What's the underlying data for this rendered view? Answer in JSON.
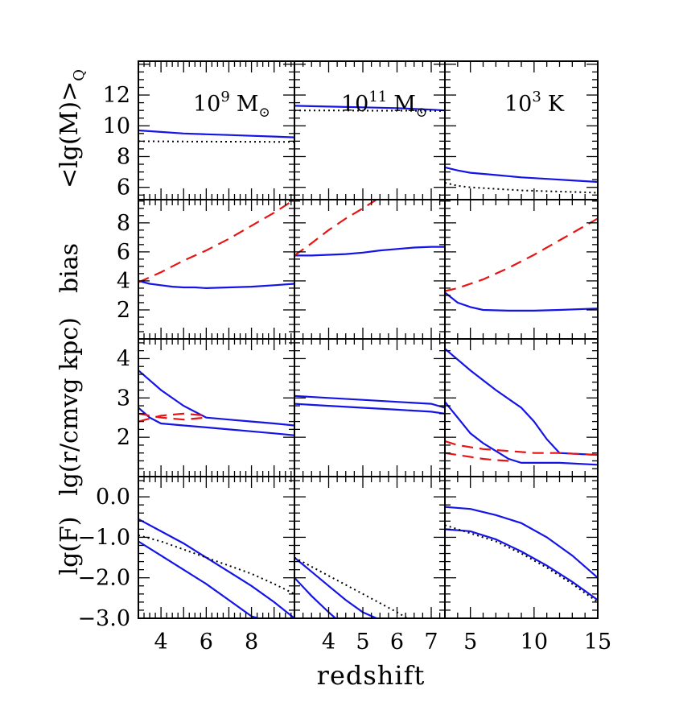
{
  "chart_data": {
    "type": "line",
    "xlabel": "redshift",
    "columns": [
      {
        "title_base": "10",
        "title_exp": "9",
        "title_unit": "M",
        "title_symbol": "⊙",
        "xlim": [
          3.0,
          9.9
        ],
        "xticks": [
          4,
          6,
          8
        ]
      },
      {
        "title_base": "10",
        "title_exp": "11",
        "title_unit": "M",
        "title_symbol": "⊙",
        "xlim": [
          3.0,
          7.4
        ],
        "xticks": [
          4,
          5,
          6,
          7
        ]
      },
      {
        "title_base": "10",
        "title_exp": "3",
        "title_unit": "K",
        "title_symbol": "",
        "xlim": [
          3.0,
          15.0
        ],
        "xticks": [
          5,
          10,
          15
        ]
      }
    ],
    "rows": [
      {
        "ylabel": "<lg(M)>",
        "ylabel_sub": "Q",
        "ylim": [
          5.2,
          14.2
        ],
        "yticks": [
          6,
          8,
          10,
          12
        ],
        "ytick_labels": [
          "6",
          "8",
          "10",
          "12"
        ],
        "major_step": 2,
        "minor_step": 0.5
      },
      {
        "ylabel": "bias",
        "ylabel_sub": "",
        "ylim": [
          0.0,
          9.6
        ],
        "yticks": [
          2,
          4,
          6,
          8
        ],
        "ytick_labels": [
          "2",
          "4",
          "6",
          "8"
        ],
        "major_step": 2,
        "minor_step": 0.5
      },
      {
        "ylabel": "lg(r/cmvg kpc)",
        "ylabel_sub": "",
        "ylim": [
          1.0,
          4.5
        ],
        "yticks": [
          2,
          3,
          4
        ],
        "ytick_labels": [
          "2",
          "3",
          "4"
        ],
        "major_step": 1,
        "minor_step": 0.2
      },
      {
        "ylabel": "lg(F)",
        "ylabel_sub": "",
        "ylim": [
          -3.0,
          0.5
        ],
        "yticks": [
          0,
          -1,
          -2,
          -3
        ],
        "ytick_labels": [
          "0.0",
          "−1.0",
          "−2.0",
          "−3.0"
        ],
        "major_step": 1,
        "minor_step": 0.2
      }
    ],
    "colors": {
      "solid": "#1414e6",
      "dashed": "#e61414",
      "dotted": "#000000"
    },
    "panels": [
      {
        "row": 0,
        "col": 0,
        "series": [
          {
            "style": "solid",
            "x": [
              3.0,
              4,
              5,
              6,
              7,
              8,
              9,
              9.9
            ],
            "y": [
              9.7,
              9.6,
              9.5,
              9.45,
              9.4,
              9.35,
              9.3,
              9.25
            ]
          },
          {
            "style": "dotted",
            "x": [
              3.0,
              5,
              7,
              9.9
            ],
            "y": [
              9.0,
              8.98,
              8.97,
              8.95
            ]
          }
        ]
      },
      {
        "row": 0,
        "col": 1,
        "series": [
          {
            "style": "solid",
            "x": [
              3.0,
              4,
              5,
              6,
              7,
              7.4
            ],
            "y": [
              11.3,
              11.25,
              11.2,
              11.15,
              11.05,
              11.0
            ]
          },
          {
            "style": "dotted",
            "x": [
              3.0,
              4,
              5,
              6,
              7,
              7.4
            ],
            "y": [
              11.0,
              11.0,
              10.98,
              10.98,
              10.97,
              10.96
            ]
          }
        ]
      },
      {
        "row": 0,
        "col": 2,
        "series": [
          {
            "style": "solid",
            "x": [
              3.0,
              4,
              5,
              7,
              9,
              11,
              13,
              15
            ],
            "y": [
              7.3,
              7.1,
              6.95,
              6.8,
              6.65,
              6.55,
              6.45,
              6.35
            ]
          },
          {
            "style": "dotted",
            "x": [
              3.0,
              4,
              5,
              7,
              9,
              11,
              13,
              15
            ],
            "y": [
              6.3,
              6.1,
              6.0,
              5.9,
              5.8,
              5.75,
              5.7,
              5.65
            ]
          }
        ]
      },
      {
        "row": 1,
        "col": 0,
        "series": [
          {
            "style": "solid",
            "x": [
              3.0,
              3.5,
              4,
              4.5,
              5,
              5.5,
              6,
              7,
              8,
              9,
              9.9
            ],
            "y": [
              4.0,
              3.8,
              3.7,
              3.6,
              3.55,
              3.55,
              3.5,
              3.55,
              3.6,
              3.7,
              3.8
            ]
          },
          {
            "style": "dashed",
            "x": [
              3.0,
              4,
              5,
              6,
              7,
              8,
              9,
              9.9
            ],
            "y": [
              3.9,
              4.6,
              5.4,
              6.1,
              6.9,
              7.8,
              8.7,
              9.6
            ]
          }
        ]
      },
      {
        "row": 1,
        "col": 1,
        "series": [
          {
            "style": "solid",
            "x": [
              3.0,
              3.5,
              4,
              4.5,
              5,
              5.5,
              6,
              6.5,
              7,
              7.4
            ],
            "y": [
              5.75,
              5.75,
              5.8,
              5.85,
              5.95,
              6.1,
              6.2,
              6.3,
              6.35,
              6.35
            ]
          },
          {
            "style": "dashed",
            "x": [
              3.0,
              3.5,
              4,
              4.5,
              5,
              5.4
            ],
            "y": [
              5.75,
              6.6,
              7.5,
              8.3,
              9.0,
              9.6
            ]
          }
        ]
      },
      {
        "row": 1,
        "col": 2,
        "series": [
          {
            "style": "solid",
            "x": [
              3.0,
              4,
              5,
              6,
              8,
              10,
              12,
              15
            ],
            "y": [
              3.2,
              2.5,
              2.2,
              2.0,
              1.95,
              1.95,
              2.0,
              2.1
            ]
          },
          {
            "style": "dashed",
            "x": [
              3.0,
              4,
              6,
              8,
              10,
              12,
              15
            ],
            "y": [
              3.3,
              3.5,
              4.1,
              4.9,
              5.8,
              6.8,
              8.3
            ]
          }
        ]
      },
      {
        "row": 2,
        "col": 0,
        "series": [
          {
            "style": "solid",
            "x": [
              3.0,
              4,
              5,
              6,
              7,
              8,
              9,
              9.9
            ],
            "y": [
              3.7,
              3.2,
              2.8,
              2.5,
              2.45,
              2.4,
              2.35,
              2.3
            ]
          },
          {
            "style": "solid",
            "x": [
              3.0,
              3.5,
              4,
              5,
              6,
              7,
              8,
              9,
              9.9
            ],
            "y": [
              2.75,
              2.5,
              2.35,
              2.3,
              2.25,
              2.2,
              2.15,
              2.1,
              2.05
            ]
          },
          {
            "style": "dashed",
            "x": [
              3.0,
              4,
              5,
              6
            ],
            "y": [
              2.4,
              2.55,
              2.6,
              2.55
            ]
          },
          {
            "style": "dashed",
            "x": [
              3.0,
              4,
              5,
              6
            ],
            "y": [
              2.6,
              2.5,
              2.45,
              2.5
            ]
          }
        ]
      },
      {
        "row": 2,
        "col": 1,
        "series": [
          {
            "style": "solid",
            "x": [
              3.0,
              4,
              5,
              6,
              7,
              7.4
            ],
            "y": [
              3.05,
              3.0,
              2.95,
              2.9,
              2.85,
              2.75
            ]
          },
          {
            "style": "solid",
            "x": [
              3.0,
              4,
              5,
              6,
              7,
              7.4
            ],
            "y": [
              2.85,
              2.8,
              2.75,
              2.7,
              2.65,
              2.6
            ]
          }
        ]
      },
      {
        "row": 2,
        "col": 2,
        "series": [
          {
            "style": "solid",
            "x": [
              3.0,
              5,
              7,
              9,
              10,
              11,
              12,
              15
            ],
            "y": [
              4.25,
              3.7,
              3.2,
              2.75,
              2.4,
              1.95,
              1.6,
              1.55
            ]
          },
          {
            "style": "solid",
            "x": [
              3.0,
              4,
              5,
              6,
              7,
              8,
              9,
              12,
              15
            ],
            "y": [
              2.9,
              2.5,
              2.1,
              1.85,
              1.65,
              1.45,
              1.35,
              1.35,
              1.3
            ]
          },
          {
            "style": "dashed",
            "x": [
              3.0,
              4,
              5,
              6,
              8,
              10,
              12,
              15
            ],
            "y": [
              1.9,
              1.8,
              1.75,
              1.7,
              1.65,
              1.6,
              1.6,
              1.55
            ]
          },
          {
            "style": "dashed",
            "x": [
              3.0,
              4,
              5,
              6,
              7,
              8
            ],
            "y": [
              1.6,
              1.55,
              1.5,
              1.45,
              1.42,
              1.4
            ]
          }
        ]
      },
      {
        "row": 3,
        "col": 0,
        "series": [
          {
            "style": "solid",
            "x": [
              3.0,
              4,
              5,
              6,
              7,
              8,
              9,
              9.9
            ],
            "y": [
              -0.55,
              -0.85,
              -1.15,
              -1.5,
              -1.85,
              -2.2,
              -2.6,
              -3.0
            ]
          },
          {
            "style": "solid",
            "x": [
              3.0,
              4,
              5,
              6,
              7,
              8,
              8.3
            ],
            "y": [
              -1.1,
              -1.45,
              -1.8,
              -2.15,
              -2.55,
              -2.95,
              -3.0
            ]
          },
          {
            "style": "dotted",
            "x": [
              3.0,
              4,
              5,
              6,
              7,
              8,
              9,
              9.9
            ],
            "y": [
              -0.95,
              -1.1,
              -1.3,
              -1.5,
              -1.7,
              -1.9,
              -2.15,
              -2.4
            ]
          }
        ]
      },
      {
        "row": 3,
        "col": 1,
        "series": [
          {
            "style": "solid",
            "x": [
              3.0,
              3.5,
              4,
              4.5,
              5,
              5.4
            ],
            "y": [
              -1.5,
              -1.85,
              -2.2,
              -2.55,
              -2.85,
              -3.0
            ]
          },
          {
            "style": "solid",
            "x": [
              3.0,
              3.5,
              4,
              4.2
            ],
            "y": [
              -2.0,
              -2.45,
              -2.85,
              -3.0
            ]
          },
          {
            "style": "dotted",
            "x": [
              3.0,
              4,
              5,
              6,
              6.3
            ],
            "y": [
              -1.5,
              -1.95,
              -2.4,
              -2.85,
              -3.0
            ]
          }
        ]
      },
      {
        "row": 3,
        "col": 2,
        "series": [
          {
            "style": "solid",
            "x": [
              3.0,
              5,
              7,
              9,
              11,
              13,
              15
            ],
            "y": [
              -0.25,
              -0.3,
              -0.45,
              -0.65,
              -1.0,
              -1.45,
              -2.0
            ]
          },
          {
            "style": "solid",
            "x": [
              3.0,
              5,
              7,
              9,
              11,
              13,
              15
            ],
            "y": [
              -0.8,
              -0.85,
              -1.05,
              -1.35,
              -1.7,
              -2.1,
              -2.55
            ]
          },
          {
            "style": "dotted",
            "x": [
              3.0,
              5,
              7,
              9,
              11,
              13,
              15
            ],
            "y": [
              -0.7,
              -0.9,
              -1.1,
              -1.4,
              -1.75,
              -2.15,
              -2.6
            ]
          }
        ]
      }
    ]
  }
}
